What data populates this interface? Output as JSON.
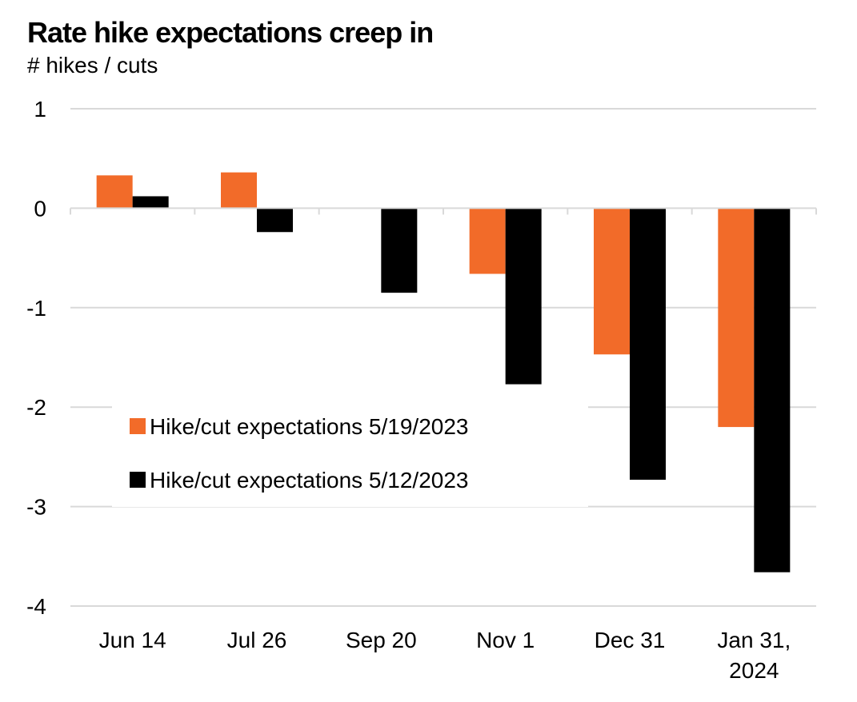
{
  "chart_data": {
    "type": "bar",
    "title": "Rate hike expectations creep in",
    "subtitle": "# hikes / cuts",
    "categories": [
      [
        "Jun 14"
      ],
      [
        "Jul 26"
      ],
      [
        "Sep 20"
      ],
      [
        "Nov 1"
      ],
      [
        "Dec 31"
      ],
      [
        "Jan 31,",
        "2024"
      ]
    ],
    "series": [
      {
        "name": "Hike/cut expectations 5/19/2023",
        "color": "#F26B29",
        "values": [
          0.33,
          0.36,
          0.0,
          -0.66,
          -1.47,
          -2.2
        ]
      },
      {
        "name": "Hike/cut expectations 5/12/2023",
        "color": "#000000",
        "values": [
          0.12,
          -0.24,
          -0.85,
          -1.77,
          -2.73,
          -3.66
        ]
      }
    ],
    "ylim": [
      -4,
      1
    ],
    "yticks": [
      1,
      0,
      -1,
      -2,
      -3,
      -4
    ],
    "grid": true,
    "legend": "center-left"
  }
}
